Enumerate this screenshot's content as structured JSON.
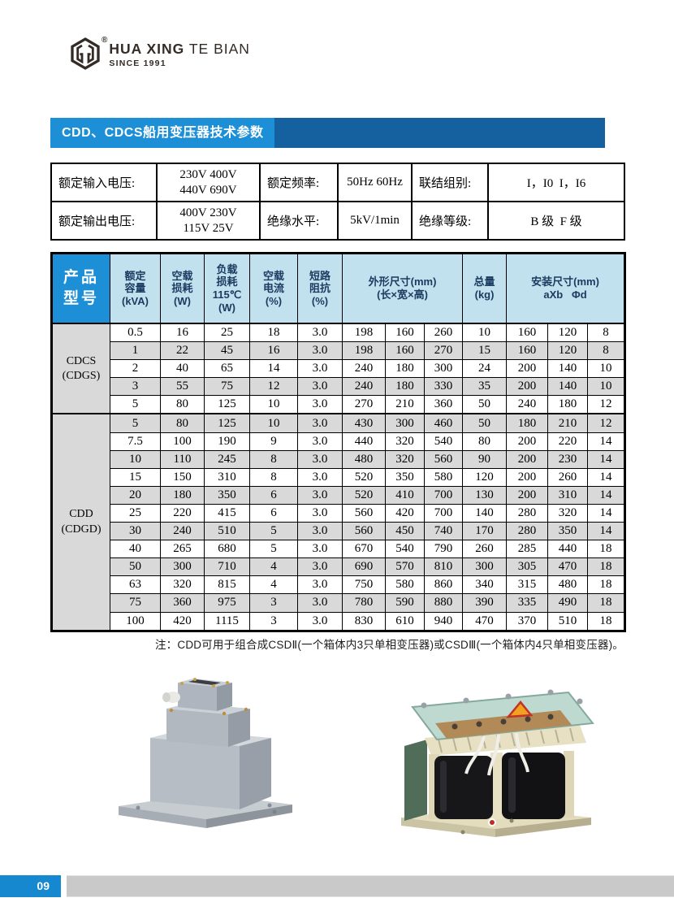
{
  "logo": {
    "brand_primary": "HUA XING",
    "brand_secondary": " TE BIAN",
    "since": "SINCE 1991",
    "registered_mark": "®",
    "mark_icon": "hexagon-monogram-icon",
    "color": "#342b26"
  },
  "title_bar": {
    "title": "CDD、CDCS船用变压器技术参数",
    "accent_blue": "#1d8fd7",
    "dark_blue": "#15609f"
  },
  "spec_table": {
    "rows": [
      {
        "c1_label": "额定输入电压:",
        "c1_value_lines": [
          "230V 400V",
          "440V 690V"
        ],
        "c2_label": "额定频率:",
        "c2_value": "50Hz 60Hz",
        "c3_label": "联结组别:",
        "c3_value": "I，I0  I，I6"
      },
      {
        "c1_label": "额定输出电压:",
        "c1_value_lines": [
          "400V 230V",
          "115V 25V"
        ],
        "c2_label": "绝缘水平:",
        "c2_value": "5kV/1min",
        "c3_label": "绝缘等级:",
        "c3_value": "B 级  F 级"
      }
    ]
  },
  "main_table": {
    "product_header_lines": [
      "产品",
      "型号"
    ],
    "header_fill": "#c2e1ef",
    "header_text_color": "#1a3a5f",
    "row_shade_color": "#d9d9d9",
    "col_headers": [
      {
        "lines": [
          "额定",
          "容量",
          "(kVA)"
        ]
      },
      {
        "lines": [
          "空载",
          "损耗",
          "(W)"
        ]
      },
      {
        "lines": [
          "负载",
          "损耗",
          "115℃",
          "(W)"
        ]
      },
      {
        "lines": [
          "空载",
          "电流",
          "(%)"
        ]
      },
      {
        "lines": [
          "短路",
          "阻抗",
          "(%)"
        ]
      },
      {
        "lines": [
          "外形尺寸(mm)",
          "(长×宽×高)"
        ],
        "span": 3
      },
      {
        "lines": [
          "总量",
          "(kg)"
        ]
      },
      {
        "lines": [
          "安装尺寸(mm)",
          "aXb   Φd"
        ],
        "span": 3
      }
    ],
    "groups": [
      {
        "model_lines": [
          "CDCS",
          "(CDGS)"
        ],
        "rows": [
          [
            "0.5",
            "16",
            "25",
            "18",
            "3.0",
            "198",
            "160",
            "260",
            "10",
            "160",
            "120",
            "8"
          ],
          [
            "1",
            "22",
            "45",
            "16",
            "3.0",
            "198",
            "160",
            "270",
            "15",
            "160",
            "120",
            "8"
          ],
          [
            "2",
            "40",
            "65",
            "14",
            "3.0",
            "240",
            "180",
            "300",
            "24",
            "200",
            "140",
            "10"
          ],
          [
            "3",
            "55",
            "75",
            "12",
            "3.0",
            "240",
            "180",
            "330",
            "35",
            "200",
            "140",
            "10"
          ],
          [
            "5",
            "80",
            "125",
            "10",
            "3.0",
            "270",
            "210",
            "360",
            "50",
            "240",
            "180",
            "12"
          ]
        ]
      },
      {
        "model_lines": [
          "CDD",
          "(CDGD)"
        ],
        "rows": [
          [
            "5",
            "80",
            "125",
            "10",
            "3.0",
            "430",
            "300",
            "460",
            "50",
            "180",
            "210",
            "12"
          ],
          [
            "7.5",
            "100",
            "190",
            "9",
            "3.0",
            "440",
            "320",
            "540",
            "80",
            "200",
            "220",
            "14"
          ],
          [
            "10",
            "110",
            "245",
            "8",
            "3.0",
            "480",
            "320",
            "560",
            "90",
            "200",
            "230",
            "14"
          ],
          [
            "15",
            "150",
            "310",
            "8",
            "3.0",
            "520",
            "350",
            "580",
            "120",
            "200",
            "260",
            "14"
          ],
          [
            "20",
            "180",
            "350",
            "6",
            "3.0",
            "520",
            "410",
            "700",
            "130",
            "200",
            "310",
            "14"
          ],
          [
            "25",
            "220",
            "415",
            "6",
            "3.0",
            "560",
            "420",
            "700",
            "140",
            "280",
            "320",
            "14"
          ],
          [
            "30",
            "240",
            "510",
            "5",
            "3.0",
            "560",
            "450",
            "740",
            "170",
            "280",
            "350",
            "14"
          ],
          [
            "40",
            "265",
            "680",
            "5",
            "3.0",
            "670",
            "540",
            "790",
            "260",
            "285",
            "440",
            "18"
          ],
          [
            "50",
            "300",
            "710",
            "4",
            "3.0",
            "690",
            "570",
            "810",
            "300",
            "305",
            "470",
            "18"
          ],
          [
            "63",
            "320",
            "815",
            "4",
            "3.0",
            "750",
            "580",
            "860",
            "340",
            "315",
            "480",
            "18"
          ],
          [
            "75",
            "360",
            "975",
            "3",
            "3.0",
            "780",
            "590",
            "880",
            "390",
            "335",
            "490",
            "18"
          ],
          [
            "100",
            "420",
            "1115",
            "3",
            "3.0",
            "830",
            "610",
            "940",
            "470",
            "370",
            "510",
            "18"
          ]
        ]
      }
    ]
  },
  "note": "注：CDD可用于组合成CSDⅡ(一个箱体内3只单相变压器)或CSDⅢ(一个箱体内4只单相变压器)。",
  "photos": {
    "left": "enclosed-marine-transformer-photo",
    "right": "open-frame-transformer-photo"
  },
  "footer": {
    "page_number": "09",
    "badge_color": "#1588d0",
    "bar_color": "#c9c9c9"
  }
}
